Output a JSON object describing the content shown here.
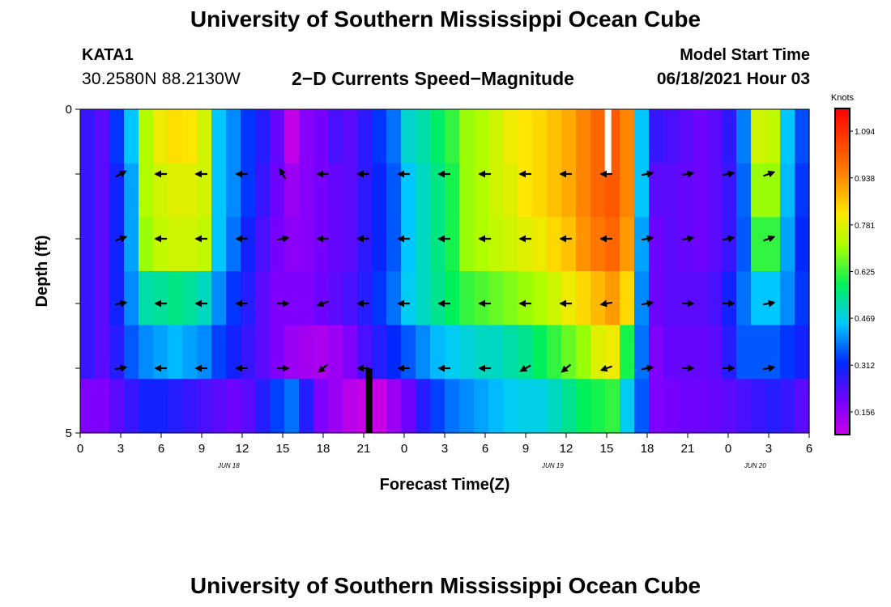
{
  "header": {
    "title": "University of Southern Mississippi Ocean Cube",
    "footer_title": "University of Southern Mississippi Ocean Cube",
    "station": "KATA1",
    "coordinates": "30.2580N  88.2130W",
    "subtitle": "2−D Currents Speed−Magnitude",
    "model_start_label": "Model Start Time",
    "model_start_value": "06/18/2021 Hour 03"
  },
  "chart_data": {
    "type": "heatmap",
    "title": "2-D Currents Speed-Magnitude",
    "xlabel": "Forecast Time(Z)",
    "ylabel": "Depth (ft)",
    "xlim": [
      0,
      54
    ],
    "ylim": [
      0,
      5
    ],
    "x_ticks": [
      "0",
      "3",
      "6",
      "9",
      "12",
      "15",
      "18",
      "21",
      "0",
      "3",
      "6",
      "9",
      "12",
      "15",
      "18",
      "21",
      "0",
      "3",
      "6"
    ],
    "y_ticks": [
      "0",
      "5"
    ],
    "date_labels": [
      {
        "hour": 11,
        "label": "JUN 18"
      },
      {
        "hour": 35,
        "label": "JUN 19"
      },
      {
        "hour": 50,
        "label": "JUN 20"
      }
    ],
    "colorbar": {
      "label": "Knots",
      "ticks": [
        "1.094",
        "0.938",
        "0.781",
        "0.625",
        "0.469",
        "0.312",
        "0.156"
      ],
      "min": 0.08,
      "max": 1.17
    },
    "depth_layers": [
      0,
      1,
      2,
      3,
      4,
      5
    ],
    "speed_knots": [
      [
        0.26,
        0.22,
        0.33,
        0.45,
        0.72,
        0.8,
        0.83,
        0.82,
        0.76,
        0.45,
        0.4,
        0.33,
        0.28,
        0.21,
        0.09,
        0.17,
        0.19,
        0.24,
        0.22,
        0.27,
        0.33,
        0.38,
        0.49,
        0.52,
        0.57,
        0.62,
        0.7,
        0.72,
        0.76,
        0.8,
        0.82,
        0.84,
        0.87,
        0.9,
        0.95,
        1.0,
        1.02,
        0.95,
        0.45,
        0.26,
        0.24,
        0.22,
        0.2,
        0.22,
        0.27,
        0.39,
        0.76,
        0.74,
        0.45,
        0.35
      ],
      [
        0.26,
        0.22,
        0.3,
        0.42,
        0.72,
        0.76,
        0.78,
        0.78,
        0.76,
        0.45,
        0.4,
        0.33,
        0.26,
        0.2,
        0.14,
        0.17,
        0.19,
        0.21,
        0.22,
        0.27,
        0.31,
        0.36,
        0.45,
        0.5,
        0.55,
        0.6,
        0.7,
        0.72,
        0.76,
        0.78,
        0.82,
        0.84,
        0.87,
        0.9,
        0.95,
        1.0,
        1.02,
        0.95,
        0.45,
        0.22,
        0.22,
        0.21,
        0.2,
        0.22,
        0.26,
        0.37,
        0.7,
        0.7,
        0.44,
        0.33
      ],
      [
        0.26,
        0.22,
        0.3,
        0.42,
        0.7,
        0.74,
        0.76,
        0.76,
        0.74,
        0.45,
        0.38,
        0.3,
        0.24,
        0.19,
        0.16,
        0.17,
        0.19,
        0.21,
        0.22,
        0.27,
        0.31,
        0.36,
        0.45,
        0.5,
        0.55,
        0.6,
        0.7,
        0.72,
        0.74,
        0.76,
        0.78,
        0.8,
        0.84,
        0.87,
        0.93,
        0.97,
        1.0,
        0.92,
        0.42,
        0.2,
        0.22,
        0.21,
        0.2,
        0.22,
        0.26,
        0.36,
        0.62,
        0.62,
        0.42,
        0.32
      ],
      [
        0.26,
        0.22,
        0.3,
        0.4,
        0.52,
        0.53,
        0.55,
        0.53,
        0.5,
        0.4,
        0.33,
        0.28,
        0.22,
        0.18,
        0.18,
        0.18,
        0.2,
        0.22,
        0.24,
        0.28,
        0.33,
        0.38,
        0.46,
        0.5,
        0.54,
        0.58,
        0.62,
        0.64,
        0.66,
        0.68,
        0.7,
        0.72,
        0.76,
        0.8,
        0.84,
        0.88,
        0.92,
        0.84,
        0.4,
        0.2,
        0.22,
        0.22,
        0.22,
        0.24,
        0.3,
        0.38,
        0.45,
        0.45,
        0.4,
        0.33
      ],
      [
        0.26,
        0.22,
        0.28,
        0.36,
        0.4,
        0.42,
        0.44,
        0.42,
        0.4,
        0.34,
        0.3,
        0.26,
        0.22,
        0.18,
        0.14,
        0.13,
        0.12,
        0.14,
        0.18,
        0.24,
        0.28,
        0.32,
        0.36,
        0.4,
        0.44,
        0.46,
        0.48,
        0.5,
        0.5,
        0.52,
        0.54,
        0.58,
        0.62,
        0.66,
        0.7,
        0.78,
        0.8,
        0.6,
        0.38,
        0.18,
        0.21,
        0.21,
        0.21,
        0.22,
        0.28,
        0.36,
        0.36,
        0.36,
        0.33,
        0.3
      ],
      [
        0.18,
        0.18,
        0.22,
        0.26,
        0.3,
        0.3,
        0.28,
        0.26,
        0.24,
        0.22,
        0.2,
        0.22,
        0.28,
        0.34,
        0.38,
        0.28,
        0.18,
        0.14,
        0.1,
        0.08,
        0.08,
        0.14,
        0.2,
        0.28,
        0.34,
        0.38,
        0.4,
        0.42,
        0.44,
        0.46,
        0.47,
        0.47,
        0.5,
        0.54,
        0.58,
        0.6,
        0.62,
        0.46,
        0.36,
        0.18,
        0.19,
        0.2,
        0.2,
        0.21,
        0.22,
        0.24,
        0.26,
        0.28,
        0.26,
        0.22
      ]
    ],
    "missing_markers": [
      {
        "hour": 39.1,
        "depth_from": 0,
        "depth_to": 1,
        "color": "#ffffff"
      },
      {
        "hour": 21.4,
        "depth_from": 4,
        "depth_to": 5,
        "color": "#000000"
      }
    ],
    "vector_columns_hours": [
      3,
      6,
      9,
      12,
      15,
      18,
      21,
      24,
      27,
      30,
      33,
      36,
      39,
      42,
      45,
      48,
      51
    ],
    "vector_depths": [
      1,
      2,
      3,
      4
    ],
    "vector_angles_deg": [
      [
        30,
        180,
        180,
        180,
        120,
        180,
        180,
        180,
        180,
        180,
        180,
        180,
        180,
        10,
        10,
        10,
        20
      ],
      [
        20,
        180,
        180,
        180,
        10,
        180,
        180,
        180,
        180,
        180,
        180,
        180,
        180,
        10,
        10,
        10,
        20
      ],
      [
        10,
        180,
        180,
        180,
        0,
        200,
        180,
        180,
        180,
        180,
        180,
        180,
        190,
        10,
        0,
        0,
        10
      ],
      [
        10,
        180,
        180,
        180,
        0,
        220,
        180,
        180,
        180,
        180,
        210,
        220,
        200,
        10,
        0,
        0,
        10
      ]
    ]
  }
}
